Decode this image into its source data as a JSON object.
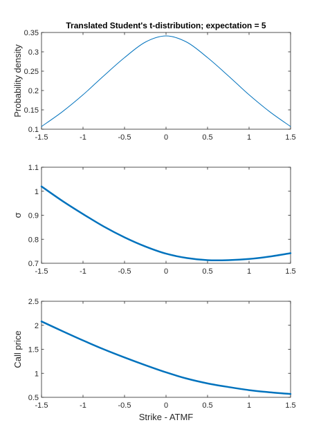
{
  "chart_data": [
    {
      "type": "line",
      "title": "Translated Student's t-distribution; expectation = 5",
      "xlabel": "",
      "ylabel": "Probability density",
      "xlim": [
        -1.5,
        1.5
      ],
      "ylim": [
        0.1,
        0.35
      ],
      "xticks": [
        -1.5,
        -1,
        -0.5,
        0,
        0.5,
        1,
        1.5
      ],
      "xtick_labels": [
        "-1.5",
        "-1",
        "-0.5",
        "0",
        "0.5",
        "1",
        "1.5"
      ],
      "yticks": [
        0.1,
        0.15,
        0.2,
        0.25,
        0.3,
        0.35
      ],
      "ytick_labels": [
        "0.1",
        "0.15",
        "0.2",
        "0.25",
        "0.3",
        "0.35"
      ],
      "grid": false,
      "line_color": "#0072BD",
      "line_style": "thin",
      "series": [
        {
          "x": [
            -1.5,
            -1.25,
            -1.0,
            -0.75,
            -0.5,
            -0.25,
            0,
            0.25,
            0.5,
            0.75,
            1.0,
            1.25,
            1.5
          ],
          "y": [
            0.107,
            0.145,
            0.189,
            0.238,
            0.285,
            0.325,
            0.341,
            0.325,
            0.285,
            0.238,
            0.189,
            0.145,
            0.107
          ]
        }
      ]
    },
    {
      "type": "line",
      "title": "",
      "xlabel": "",
      "ylabel": "σ",
      "xlim": [
        -1.5,
        1.5
      ],
      "ylim": [
        0.7,
        1.1
      ],
      "xticks": [
        -1.5,
        -1,
        -0.5,
        0,
        0.5,
        1,
        1.5
      ],
      "xtick_labels": [
        "-1.5",
        "-1",
        "-0.5",
        "0",
        "0.5",
        "1",
        "1.5"
      ],
      "yticks": [
        0.7,
        0.8,
        0.9,
        1.0,
        1.1
      ],
      "ytick_labels": [
        "0.7",
        "0.8",
        "0.9",
        "1",
        "1.1"
      ],
      "grid": false,
      "line_color": "#0072BD",
      "line_style": "thick",
      "series": [
        {
          "x": [
            -1.5,
            -1.25,
            -1.0,
            -0.75,
            -0.5,
            -0.25,
            0,
            0.25,
            0.5,
            0.75,
            1.0,
            1.25,
            1.5
          ],
          "y": [
            1.02,
            0.96,
            0.905,
            0.853,
            0.808,
            0.77,
            0.74,
            0.722,
            0.713,
            0.713,
            0.718,
            0.728,
            0.742
          ]
        }
      ]
    },
    {
      "type": "line",
      "title": "",
      "xlabel": "Strike - ATMF",
      "ylabel": "Call price",
      "xlim": [
        -1.5,
        1.5
      ],
      "ylim": [
        0.5,
        2.5
      ],
      "xticks": [
        -1.5,
        -1,
        -0.5,
        0,
        0.5,
        1,
        1.5
      ],
      "xtick_labels": [
        "-1.5",
        "-1",
        "-0.5",
        "0",
        "0.5",
        "1",
        "1.5"
      ],
      "yticks": [
        0.5,
        1.0,
        1.5,
        2.0,
        2.5
      ],
      "ytick_labels": [
        "0.5",
        "1",
        "1.5",
        "2",
        "2.5"
      ],
      "grid": false,
      "line_color": "#0072BD",
      "line_style": "thick",
      "series": [
        {
          "x": [
            -1.5,
            -1.25,
            -1.0,
            -0.75,
            -0.5,
            -0.25,
            0,
            0.25,
            0.5,
            0.75,
            1.0,
            1.25,
            1.5
          ],
          "y": [
            2.08,
            1.88,
            1.685,
            1.5,
            1.33,
            1.17,
            1.02,
            0.89,
            0.79,
            0.715,
            0.65,
            0.605,
            0.57
          ]
        }
      ]
    }
  ]
}
